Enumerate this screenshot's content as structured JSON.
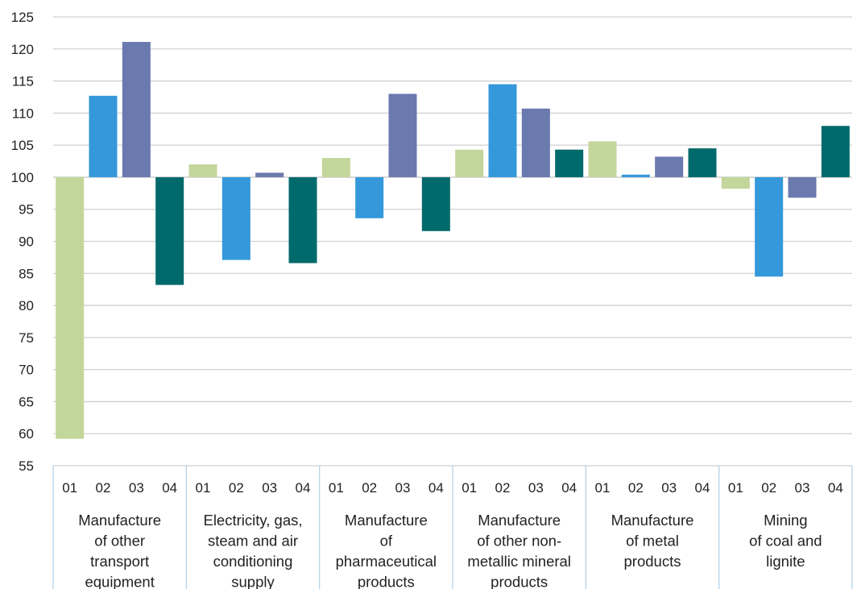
{
  "chart_data": {
    "type": "bar",
    "title": "",
    "xlabel": "",
    "ylabel": "",
    "ylim": [
      55,
      125
    ],
    "yticks": [
      55,
      60,
      65,
      70,
      75,
      80,
      85,
      90,
      95,
      100,
      105,
      110,
      115,
      120,
      125
    ],
    "baseline": 100,
    "grid": true,
    "legend": "none",
    "quarters": [
      "01",
      "02",
      "03",
      "04"
    ],
    "colors": [
      "#c3d69b",
      "#3498db",
      "#6a79ae",
      "#00696b"
    ],
    "groups": [
      {
        "label": [
          "Manufacture",
          "of other",
          "transport",
          "equipment"
        ],
        "values": [
          59.2,
          112.7,
          121.1,
          83.2
        ]
      },
      {
        "label": [
          "Electricity, gas,",
          "steam and air",
          "conditioning",
          "supply"
        ],
        "values": [
          102.0,
          87.1,
          100.7,
          86.6
        ]
      },
      {
        "label": [
          "Manufacture",
          "of",
          "pharmaceutical",
          "products"
        ],
        "values": [
          103.0,
          93.6,
          113.0,
          91.6
        ]
      },
      {
        "label": [
          "Manufacture",
          "of other non-",
          "metallic mineral",
          "products"
        ],
        "values": [
          104.3,
          114.5,
          110.7,
          104.3
        ]
      },
      {
        "label": [
          "Manufacture",
          "of metal",
          "products"
        ],
        "values": [
          105.6,
          100.4,
          103.2,
          104.5
        ]
      },
      {
        "label": [
          "Mining",
          "of coal and",
          "lignite"
        ],
        "values": [
          98.2,
          84.5,
          96.8,
          108.0
        ]
      }
    ]
  }
}
